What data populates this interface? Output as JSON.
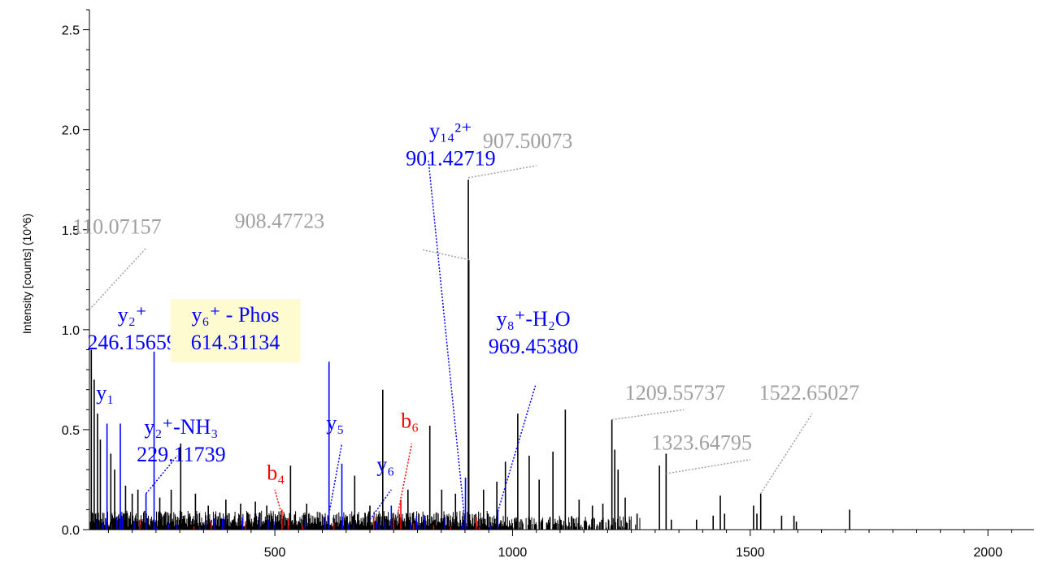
{
  "chart_data": {
    "type": "bar",
    "ylabel": "Intensity [counts] (10^6)",
    "xlim": [
      110,
      2080
    ],
    "ylim": [
      0,
      2.6
    ],
    "x_ticks": [
      500,
      1000,
      1500,
      2000
    ],
    "y_ticks": [
      0.0,
      0.5,
      1.0,
      1.5,
      2.0,
      2.5
    ],
    "grid": false,
    "colors": {
      "axis": "#000000",
      "peak": "#000000",
      "y_ion": "#0000ff",
      "b_ion": "#ff0000",
      "unmatched_label": "#a0a0a0",
      "highlight": "#fffbd0"
    },
    "major_peaks": [
      {
        "x": 114,
        "y": 0.9,
        "ion": "none"
      },
      {
        "x": 120,
        "y": 0.75,
        "ion": "none"
      },
      {
        "x": 127,
        "y": 0.58,
        "ion": "none"
      },
      {
        "x": 133,
        "y": 0.45,
        "ion": "none"
      },
      {
        "x": 147,
        "y": 0.53,
        "ion": "y"
      },
      {
        "x": 155,
        "y": 0.38,
        "ion": "none"
      },
      {
        "x": 163,
        "y": 0.3,
        "ion": "none"
      },
      {
        "x": 175,
        "y": 0.53,
        "ion": "y"
      },
      {
        "x": 186,
        "y": 0.22,
        "ion": "none"
      },
      {
        "x": 200,
        "y": 0.18,
        "ion": "none"
      },
      {
        "x": 212,
        "y": 0.2,
        "ion": "none"
      },
      {
        "x": 229,
        "y": 0.18,
        "ion": "y"
      },
      {
        "x": 246,
        "y": 0.89,
        "ion": "y"
      },
      {
        "x": 258,
        "y": 0.16,
        "ion": "none"
      },
      {
        "x": 282,
        "y": 0.2,
        "ion": "none"
      },
      {
        "x": 302,
        "y": 0.43,
        "ion": "none"
      },
      {
        "x": 333,
        "y": 0.18,
        "ion": "none"
      },
      {
        "x": 360,
        "y": 0.12,
        "ion": "none"
      },
      {
        "x": 397,
        "y": 0.15,
        "ion": "none"
      },
      {
        "x": 428,
        "y": 0.13,
        "ion": "none"
      },
      {
        "x": 459,
        "y": 0.14,
        "ion": "none"
      },
      {
        "x": 483,
        "y": 0.12,
        "ion": "none"
      },
      {
        "x": 515,
        "y": 0.1,
        "ion": "b"
      },
      {
        "x": 533,
        "y": 0.32,
        "ion": "none"
      },
      {
        "x": 567,
        "y": 0.13,
        "ion": "none"
      },
      {
        "x": 614,
        "y": 0.84,
        "ion": "y"
      },
      {
        "x": 641,
        "y": 0.33,
        "ion": "y"
      },
      {
        "x": 668,
        "y": 0.27,
        "ion": "none"
      },
      {
        "x": 700,
        "y": 0.12,
        "ion": "none"
      },
      {
        "x": 727,
        "y": 0.7,
        "ion": "none"
      },
      {
        "x": 745,
        "y": 0.12,
        "ion": "y"
      },
      {
        "x": 765,
        "y": 0.15,
        "ion": "b"
      },
      {
        "x": 780,
        "y": 0.2,
        "ion": "none"
      },
      {
        "x": 826,
        "y": 0.52,
        "ion": "none"
      },
      {
        "x": 851,
        "y": 0.2,
        "ion": "none"
      },
      {
        "x": 880,
        "y": 0.18,
        "ion": "none"
      },
      {
        "x": 901,
        "y": 0.26,
        "ion": "y"
      },
      {
        "x": 907,
        "y": 1.75,
        "ion": "none"
      },
      {
        "x": 908,
        "y": 1.35,
        "ion": "none"
      },
      {
        "x": 939,
        "y": 0.2,
        "ion": "none"
      },
      {
        "x": 967,
        "y": 0.24,
        "ion": "none"
      },
      {
        "x": 969,
        "y": 0.1,
        "ion": "y"
      },
      {
        "x": 985,
        "y": 0.34,
        "ion": "none"
      },
      {
        "x": 1011,
        "y": 0.58,
        "ion": "none"
      },
      {
        "x": 1035,
        "y": 0.37,
        "ion": "none"
      },
      {
        "x": 1056,
        "y": 0.25,
        "ion": "none"
      },
      {
        "x": 1085,
        "y": 0.39,
        "ion": "none"
      },
      {
        "x": 1111,
        "y": 0.6,
        "ion": "none"
      },
      {
        "x": 1140,
        "y": 0.15,
        "ion": "none"
      },
      {
        "x": 1168,
        "y": 0.12,
        "ion": "none"
      },
      {
        "x": 1190,
        "y": 0.13,
        "ion": "none"
      },
      {
        "x": 1209,
        "y": 0.55,
        "ion": "none"
      },
      {
        "x": 1215,
        "y": 0.4,
        "ion": "none"
      },
      {
        "x": 1222,
        "y": 0.3,
        "ion": "none"
      },
      {
        "x": 1237,
        "y": 0.16,
        "ion": "none"
      },
      {
        "x": 1262,
        "y": 0.08,
        "ion": "none"
      },
      {
        "x": 1309,
        "y": 0.32,
        "ion": "none"
      },
      {
        "x": 1323,
        "y": 0.38,
        "ion": "none"
      },
      {
        "x": 1334,
        "y": 0.05,
        "ion": "none"
      },
      {
        "x": 1387,
        "y": 0.05,
        "ion": "none"
      },
      {
        "x": 1422,
        "y": 0.07,
        "ion": "none"
      },
      {
        "x": 1437,
        "y": 0.17,
        "ion": "none"
      },
      {
        "x": 1446,
        "y": 0.08,
        "ion": "none"
      },
      {
        "x": 1507,
        "y": 0.12,
        "ion": "none"
      },
      {
        "x": 1514,
        "y": 0.08,
        "ion": "none"
      },
      {
        "x": 1522,
        "y": 0.18,
        "ion": "none"
      },
      {
        "x": 1566,
        "y": 0.07,
        "ion": "none"
      },
      {
        "x": 1592,
        "y": 0.07,
        "ion": "none"
      },
      {
        "x": 1597,
        "y": 0.04,
        "ion": "none"
      },
      {
        "x": 1709,
        "y": 0.1,
        "ion": "none"
      }
    ],
    "annotations": [
      {
        "id": "a1",
        "lines": [
          "110.07157"
        ],
        "color": "#a0a0a0",
        "text_at": [
          168,
          1.48
        ],
        "leader_from": [
          110,
          1.1
        ],
        "leader_to": [
          230,
          1.41
        ],
        "highlight": false
      },
      {
        "id": "a2",
        "lines": [
          "y₂⁺",
          "246.15659"
        ],
        "color": "#0000ff",
        "text_at": [
          200,
          1.04
        ],
        "leader_from": null,
        "leader_to": null,
        "highlight": false
      },
      {
        "id": "a3",
        "lines": [
          "y₁"
        ],
        "color": "#0000ff",
        "text_at": [
          143,
          0.65
        ],
        "leader_from": null,
        "leader_to": null,
        "highlight": false
      },
      {
        "id": "a4",
        "lines": [
          "y₂⁺-NH₃",
          "229.11739"
        ],
        "color": "#0000ff",
        "text_at": [
          303,
          0.48
        ],
        "leader_from": [
          229,
          0.18
        ],
        "leader_to": [
          295,
          0.37
        ],
        "highlight": false
      },
      {
        "id": "a5",
        "lines": [
          "y₆⁺ - Phos",
          "614.31134"
        ],
        "color": "#0000ff",
        "text_at": [
          417,
          1.04
        ],
        "leader_from": [
          614,
          0.07
        ],
        "leader_to": [
          614,
          0.82
        ],
        "highlight": true
      },
      {
        "id": "a6",
        "lines": [
          "908.47723"
        ],
        "color": "#a0a0a0",
        "text_at": [
          510,
          1.51
        ],
        "leader_from": [
          908,
          1.35
        ],
        "leader_to": [
          810,
          1.4
        ],
        "highlight": false
      },
      {
        "id": "a7",
        "lines": [
          "y₁₄²⁺",
          "901.42719"
        ],
        "color": "#0000ff",
        "text_at": [
          870,
          1.96
        ],
        "leader_from": [
          901,
          0.01
        ],
        "leader_to": [
          823,
          1.85
        ],
        "highlight": false
      },
      {
        "id": "a8",
        "lines": [
          "907.50073"
        ],
        "color": "#a0a0a0",
        "text_at": [
          1032,
          1.91
        ],
        "leader_from": [
          907,
          1.76
        ],
        "leader_to": [
          1050,
          1.82
        ],
        "highlight": false
      },
      {
        "id": "a9",
        "lines": [
          "y₈⁺-H₂O",
          "969.45380"
        ],
        "color": "#0000ff",
        "text_at": [
          1044,
          1.02
        ],
        "leader_from": [
          969,
          0.09
        ],
        "leader_to": [
          1048,
          0.72
        ],
        "highlight": false
      },
      {
        "id": "a10",
        "lines": [
          "y₅"
        ],
        "color": "#0000ff",
        "text_at": [
          627,
          0.5
        ],
        "leader_from": [
          614,
          0.08
        ],
        "leader_to": [
          641,
          0.43
        ],
        "highlight": false
      },
      {
        "id": "a11",
        "lines": [
          "b₆"
        ],
        "color": "#ff0000",
        "text_at": [
          784,
          0.51
        ],
        "leader_from": [
          757,
          0.06
        ],
        "leader_to": [
          788,
          0.43
        ],
        "highlight": false
      },
      {
        "id": "a12",
        "lines": [
          "b₄"
        ],
        "color": "#ff0000",
        "text_at": [
          502,
          0.25
        ],
        "leader_from": [
          515,
          0.07
        ],
        "leader_to": [
          500,
          0.2
        ],
        "highlight": false
      },
      {
        "id": "a13",
        "lines": [
          "y₆"
        ],
        "color": "#0000ff",
        "text_at": [
          733,
          0.29
        ],
        "leader_from": [
          700,
          0.05
        ],
        "leader_to": [
          745,
          0.2
        ],
        "highlight": false
      },
      {
        "id": "a14",
        "lines": [
          "1209.55737"
        ],
        "color": "#a0a0a0",
        "text_at": [
          1342,
          0.65
        ],
        "leader_from": [
          1209,
          0.55
        ],
        "leader_to": [
          1360,
          0.6
        ],
        "highlight": false
      },
      {
        "id": "a15",
        "lines": [
          "1522.65027"
        ],
        "color": "#a0a0a0",
        "text_at": [
          1624,
          0.65
        ],
        "leader_from": [
          1522,
          0.18
        ],
        "leader_to": [
          1630,
          0.58
        ],
        "highlight": false
      },
      {
        "id": "a16",
        "lines": [
          "1323.64795"
        ],
        "color": "#a0a0a0",
        "text_at": [
          1398,
          0.4
        ],
        "leader_from": [
          1323,
          0.28
        ],
        "leader_to": [
          1500,
          0.35
        ],
        "highlight": false
      }
    ]
  }
}
